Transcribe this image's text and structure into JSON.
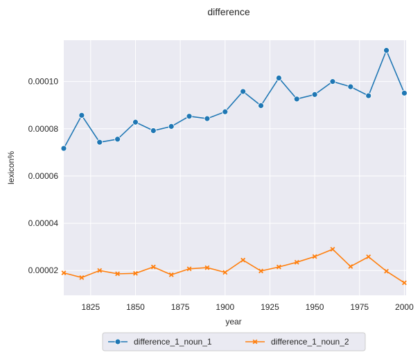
{
  "chart_data": {
    "type": "line",
    "title": "difference",
    "xlabel": "year",
    "ylabel": "lexicon%",
    "xlim": [
      1810,
      2001
    ],
    "ylim": [
      9.5e-06,
      0.0001175
    ],
    "xticks": [
      1825,
      1850,
      1875,
      1900,
      1925,
      1950,
      1975,
      2000
    ],
    "xtick_labels": [
      "1825",
      "1850",
      "1875",
      "1900",
      "1925",
      "1950",
      "1975",
      "2000"
    ],
    "yticks": [
      2e-05,
      4e-05,
      6e-05,
      8e-05,
      0.0001
    ],
    "ytick_labels": [
      "0.00002",
      "0.00004",
      "0.00006",
      "0.00008",
      "0.00010"
    ],
    "grid": true,
    "legend_position": "bottom-center",
    "x": [
      1810,
      1820,
      1830,
      1840,
      1850,
      1860,
      1870,
      1880,
      1890,
      1900,
      1910,
      1920,
      1930,
      1940,
      1950,
      1960,
      1970,
      1980,
      1990,
      2000
    ],
    "series": [
      {
        "name": "difference_1_noun_1",
        "color": "#1f77b4",
        "marker": "circle",
        "values": [
          7.17e-05,
          8.57e-05,
          7.43e-05,
          7.56e-05,
          8.28e-05,
          7.92e-05,
          8.1e-05,
          8.53e-05,
          8.43e-05,
          8.72e-05,
          9.58e-05,
          8.98e-05,
          0.0001015,
          9.26e-05,
          9.45e-05,
          0.0001,
          9.78e-05,
          9.4e-05,
          0.0001132,
          9.51e-05
        ]
      },
      {
        "name": "difference_1_noun_2",
        "color": "#ff7f0e",
        "marker": "x",
        "values": [
          1.9e-05,
          1.7e-05,
          2e-05,
          1.86e-05,
          1.88e-05,
          2.15e-05,
          1.82e-05,
          2.07e-05,
          2.12e-05,
          1.92e-05,
          2.44e-05,
          1.98e-05,
          2.15e-05,
          2.35e-05,
          2.59e-05,
          2.9e-05,
          2.17e-05,
          2.58e-05,
          1.97e-05,
          1.48e-05
        ]
      }
    ]
  }
}
